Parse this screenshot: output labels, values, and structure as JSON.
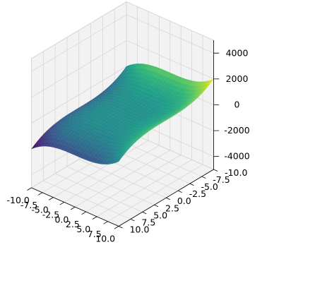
{
  "chart_data": {
    "type": "surface",
    "function": "z = x^3 - y^3",
    "colormap": "viridis",
    "x_range": [
      -10,
      10
    ],
    "y_range": [
      -10,
      10
    ],
    "z_range": [
      -5000,
      5000
    ],
    "grid": true,
    "x_ticks": [
      "-10.0",
      "-7.5",
      "-5.0",
      "-2.5",
      "0.0",
      "2.5",
      "5.0",
      "7.5",
      "10.0"
    ],
    "y_ticks": [
      "-10.0",
      "-7.5",
      "-5.0",
      "-2.5",
      "0.0",
      "2.5",
      "5.0",
      "7.5",
      "10.0"
    ],
    "z_ticks": [
      "-4000",
      "-2000",
      "0",
      "2000",
      "4000"
    ],
    "title": "",
    "xlabel": "",
    "ylabel": "",
    "zlabel": ""
  },
  "colors": {
    "viridis": [
      "#440154",
      "#482878",
      "#3e4989",
      "#31688e",
      "#26828e",
      "#1f9e89",
      "#35b779",
      "#6ece58",
      "#b5de2b",
      "#fde725"
    ],
    "pane_fill": "#f2f2f2",
    "pane_grid": "#d7d7d7",
    "pane_edge": "#cfcfcf",
    "axis_line": "#000000"
  }
}
